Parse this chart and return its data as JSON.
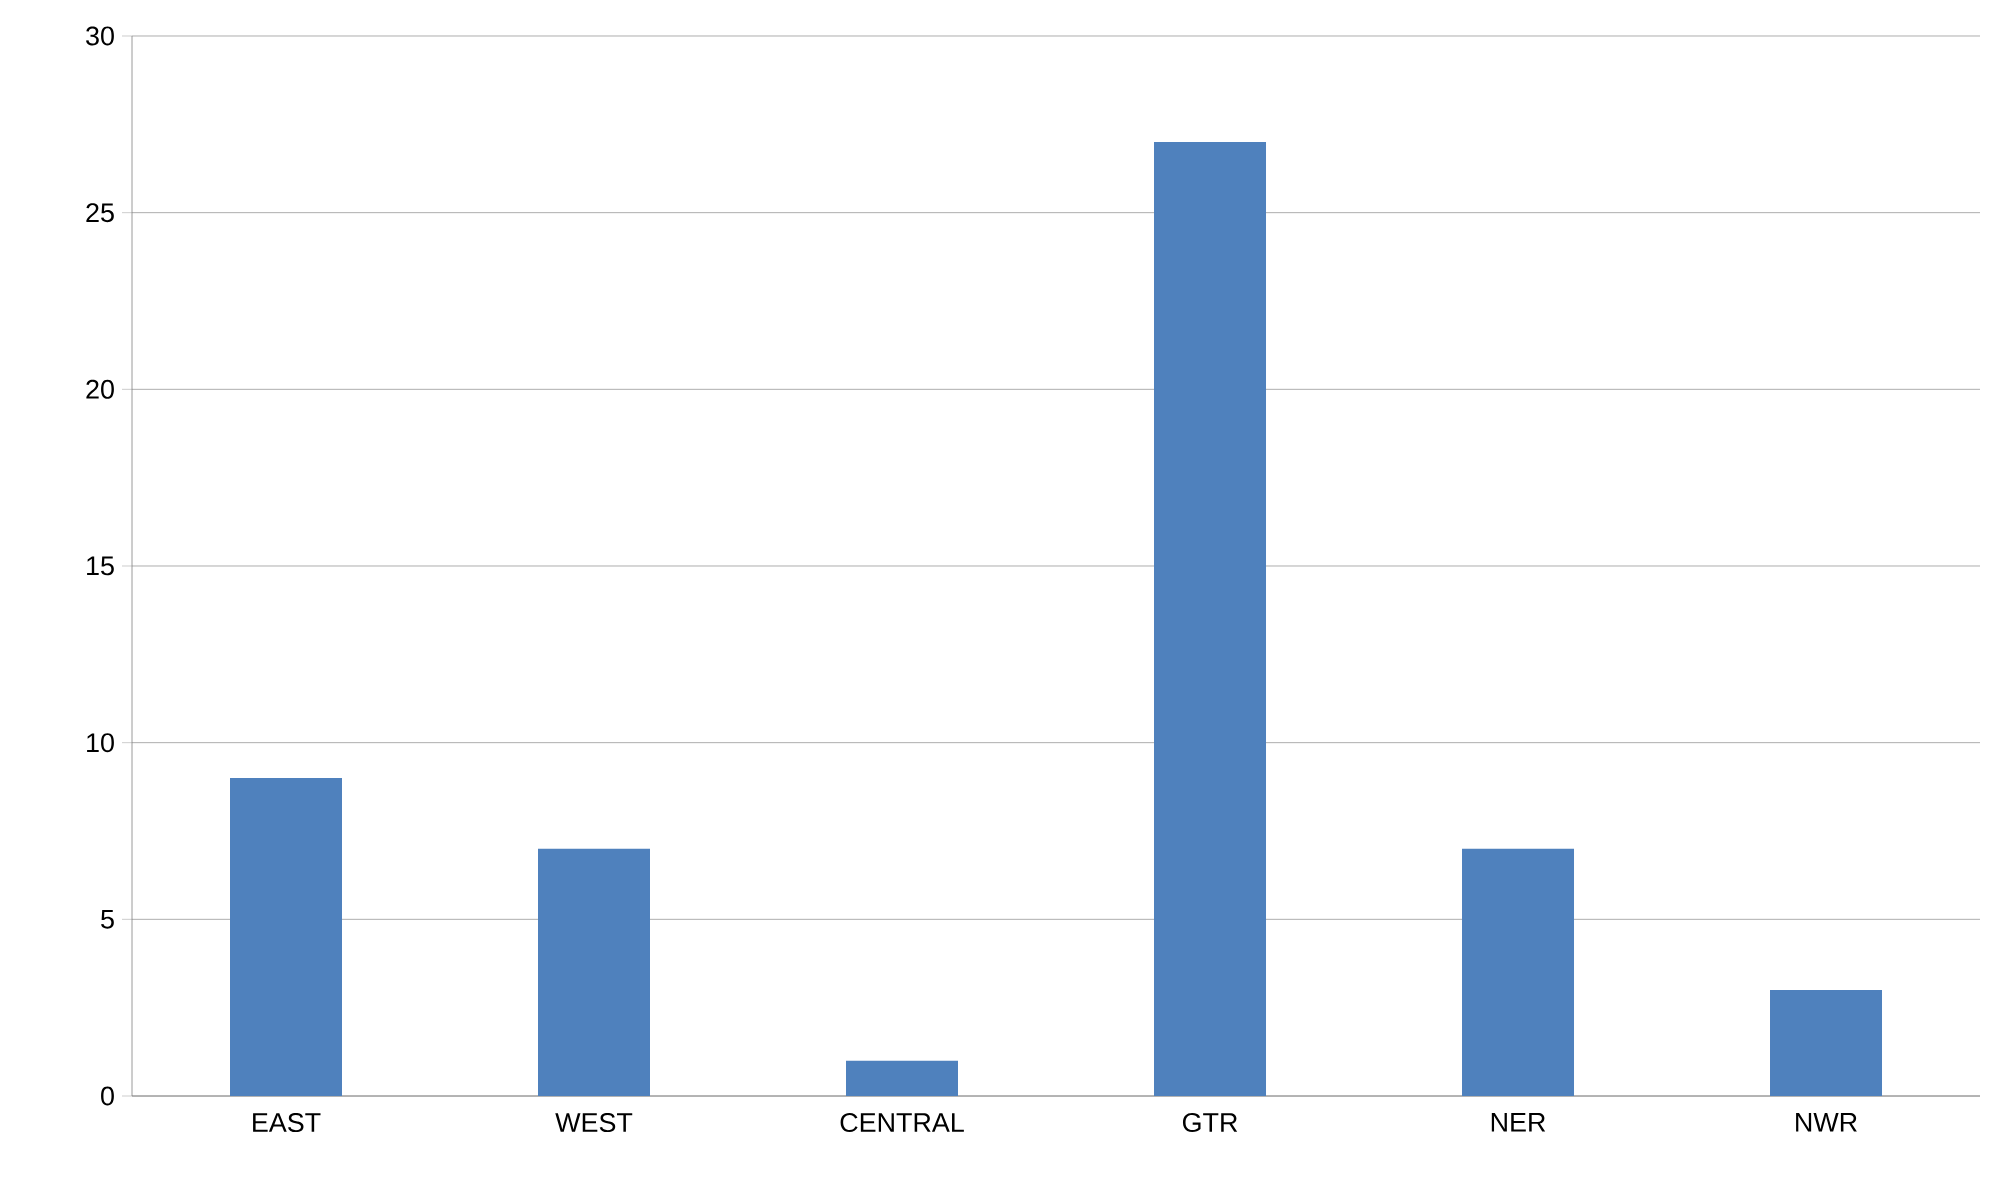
{
  "chart_data": {
    "type": "bar",
    "categories": [
      "EAST",
      "WEST",
      "CENTRAL",
      "GTR",
      "NER",
      "NWR"
    ],
    "values": [
      9,
      7,
      1,
      27,
      7,
      3
    ],
    "color": "#4f81bd",
    "ylim": [
      0,
      30
    ],
    "yticks": [
      0,
      5,
      10,
      15,
      20,
      25,
      30
    ],
    "grid": "y"
  }
}
